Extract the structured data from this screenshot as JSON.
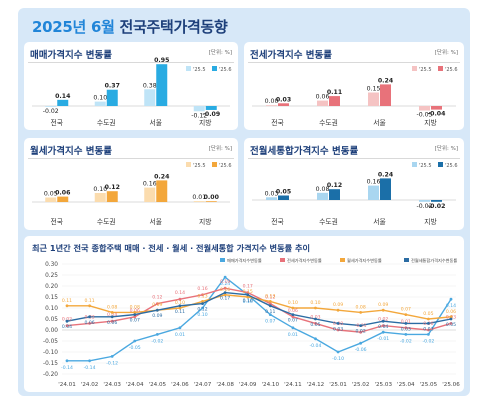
{
  "header": {
    "year_month_part": "2025년 6월",
    "title_rest": " 전국주택가격동향"
  },
  "legend_labels": {
    "prev": "'25.5",
    "cur": "'25.6"
  },
  "unit_label": "[단위: %]",
  "colors": {
    "sale": {
      "prev": "#bfe4f7",
      "cur": "#29abe2"
    },
    "jeonse": {
      "prev": "#f5c3c3",
      "cur": "#e8727a"
    },
    "monthly": {
      "prev": "#fbdcae",
      "cur": "#f3a73b"
    },
    "combined": {
      "prev": "#a9d6f0",
      "cur": "#1b6fa8"
    }
  },
  "chart_data": [
    {
      "type": "bar",
      "key": "sale",
      "title": "매매가격지수 변동률",
      "categories": [
        "전국",
        "수도권",
        "서울",
        "지방"
      ],
      "series": [
        {
          "name": "'25.5",
          "values": [
            -0.02,
            0.1,
            0.38,
            -0.12
          ]
        },
        {
          "name": "'25.6",
          "values": [
            0.14,
            0.37,
            0.95,
            -0.09
          ]
        }
      ]
    },
    {
      "type": "bar",
      "key": "jeonse",
      "title": "전세가격지수 변동률",
      "categories": [
        "전국",
        "수도권",
        "서울",
        "지방"
      ],
      "series": [
        {
          "name": "'25.5",
          "values": [
            0.0,
            0.06,
            0.15,
            -0.05
          ]
        },
        {
          "name": "'25.6",
          "values": [
            0.03,
            0.11,
            0.24,
            -0.04
          ]
        }
      ]
    },
    {
      "type": "bar",
      "key": "monthly",
      "title": "월세가격지수 변동률",
      "categories": [
        "전국",
        "수도권",
        "서울",
        "지방"
      ],
      "series": [
        {
          "name": "'25.5",
          "values": [
            0.05,
            0.1,
            0.16,
            0.01
          ]
        },
        {
          "name": "'25.6",
          "values": [
            0.06,
            0.12,
            0.24,
            0.0
          ]
        }
      ]
    },
    {
      "type": "bar",
      "key": "combined",
      "title": "전월세통합가격지수 변동률",
      "categories": [
        "전국",
        "수도권",
        "서울",
        "지방"
      ],
      "series": [
        {
          "name": "'25.5",
          "values": [
            0.03,
            0.08,
            0.16,
            -0.02
          ]
        },
        {
          "name": "'25.6",
          "values": [
            0.05,
            0.12,
            0.24,
            -0.02
          ]
        }
      ]
    },
    {
      "type": "line",
      "title": "최근 1년간 전국 종합주택 매매 · 전세 · 월세 · 전월세통합 가격지수 변동률 추이",
      "x": [
        "'24.01",
        "'24.02",
        "'24.03",
        "'24.04",
        "'24.05",
        "'24.06",
        "'24.07",
        "'24.08",
        "'24.09",
        "'24.10",
        "'24.11",
        "'24.12",
        "'25.01",
        "'25.02",
        "'25.03",
        "'25.04",
        "'25.05",
        "'25.06"
      ],
      "ylim": [
        -0.2,
        0.3
      ],
      "yticks": [
        "0.30",
        "0.25",
        "0.20",
        "0.15",
        "0.10",
        "0.05",
        "0.00",
        "-0.05",
        "-0.10",
        "-0.15",
        "-0.20"
      ],
      "grid": true,
      "legend_position": "top-right",
      "series": [
        {
          "name": "매매가격지수변동률",
          "color": "#4aa8e0",
          "values": [
            -0.14,
            -0.14,
            -0.12,
            -0.05,
            -0.02,
            0.01,
            0.1,
            0.24,
            0.16,
            0.07,
            0.01,
            -0.04,
            -0.1,
            -0.06,
            -0.01,
            -0.02,
            -0.02,
            0.14
          ]
        },
        {
          "name": "전세가격지수변동률",
          "color": "#e8727a",
          "values": [
            0.02,
            0.03,
            0.04,
            0.06,
            0.12,
            0.14,
            0.16,
            0.19,
            0.17,
            0.12,
            0.06,
            0.03,
            0.0,
            -0.01,
            0.02,
            0.01,
            0.0,
            0.03
          ]
        },
        {
          "name": "월세가격지수변동률",
          "color": "#f3a73b",
          "values": [
            0.11,
            0.11,
            0.08,
            0.08,
            0.09,
            0.1,
            0.13,
            0.16,
            0.15,
            0.13,
            0.1,
            0.1,
            0.09,
            0.08,
            0.09,
            0.07,
            0.05,
            0.06
          ]
        },
        {
          "name": "전월세통합가격지수변동률",
          "color": "#2b6ca3",
          "values": [
            0.04,
            0.06,
            0.06,
            0.07,
            0.09,
            0.11,
            0.12,
            0.17,
            0.16,
            0.11,
            0.07,
            0.05,
            0.03,
            0.02,
            0.04,
            0.03,
            0.03,
            0.05
          ]
        }
      ]
    }
  ]
}
